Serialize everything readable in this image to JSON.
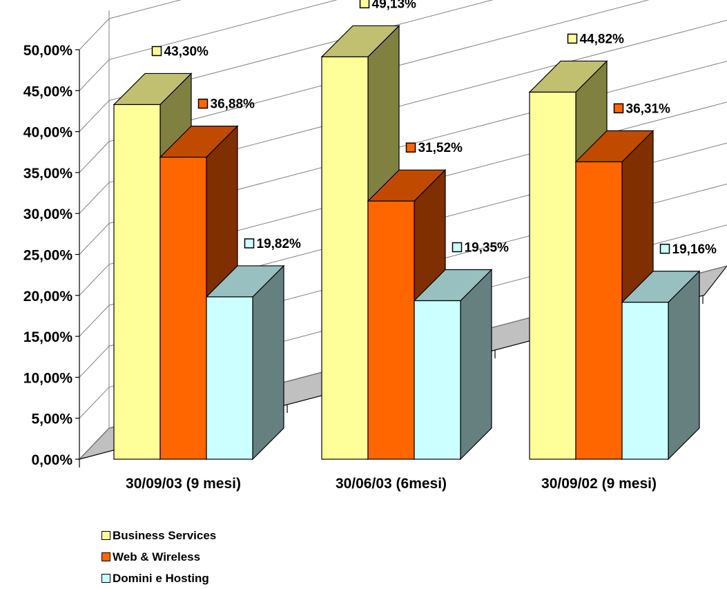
{
  "chart_data": {
    "type": "bar",
    "categories": [
      "30/09/03 (9 mesi)",
      "30/06/03 (6mesi)",
      "30/09/02 (9 mesi)"
    ],
    "series": [
      {
        "name": "Business Services",
        "values": [
          43.3,
          49.13,
          44.82
        ],
        "labels": [
          "43,30%",
          "49,13%",
          "44,82%"
        ],
        "color": "#FFFF99",
        "side": "#808040",
        "top": "#C0C070"
      },
      {
        "name": "Web & Wireless",
        "values": [
          36.88,
          31.52,
          36.31
        ],
        "labels": [
          "36,88%",
          "31,52%",
          "36,31%"
        ],
        "color": "#FF6600",
        "side": "#802F00",
        "top": "#C04A00"
      },
      {
        "name": "Domini e Hosting",
        "values": [
          19.82,
          19.35,
          19.16
        ],
        "labels": [
          "19,82%",
          "19,35%",
          "19,16%"
        ],
        "color": "#CCFFFF",
        "side": "#668080",
        "top": "#99C0C0"
      }
    ],
    "yticks": [
      "0,00%",
      "5,00%",
      "10,00%",
      "15,00%",
      "20,00%",
      "25,00%",
      "30,00%",
      "35,00%",
      "40,00%",
      "45,00%",
      "50,00%"
    ],
    "ylim": [
      0,
      50
    ],
    "grid": true,
    "legend_position": "bottom-left"
  }
}
